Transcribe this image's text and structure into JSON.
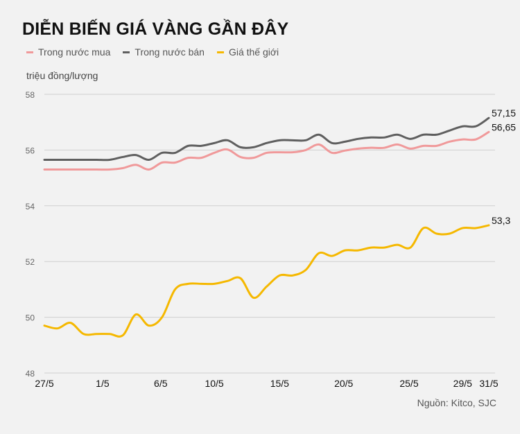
{
  "chart_data": {
    "type": "line",
    "title": "DIỄN BIẾN GIÁ VÀNG GẦN ĐÂY",
    "ylabel": "triệu đồng/lượng",
    "source": "Nguồn: Kitco, SJC",
    "ylim": [
      48,
      58
    ],
    "yticks": [
      "48",
      "50",
      "52",
      "54",
      "56",
      "58"
    ],
    "grid": true,
    "legend_position": "top-left",
    "xticks": [
      {
        "label": "27/5",
        "index": 0
      },
      {
        "label": "1/5",
        "index": 4.45
      },
      {
        "label": "6/5",
        "index": 8.9
      },
      {
        "label": "10/5",
        "index": 13
      },
      {
        "label": "15/5",
        "index": 18
      },
      {
        "label": "20/5",
        "index": 22.9
      },
      {
        "label": "25/5",
        "index": 27.9
      },
      {
        "label": "29/5",
        "index": 32
      },
      {
        "label": "31/5",
        "index": 34
      }
    ],
    "series": [
      {
        "name": "Trong nước mua",
        "color": "#f0999a",
        "end_label": "56,65",
        "values": [
          55.3,
          55.3,
          55.3,
          55.3,
          55.3,
          55.3,
          55.35,
          55.47,
          55.3,
          55.55,
          55.55,
          55.72,
          55.72,
          55.9,
          56.02,
          55.75,
          55.72,
          55.9,
          55.92,
          55.92,
          56.0,
          56.2,
          55.9,
          55.98,
          56.05,
          56.08,
          56.08,
          56.2,
          56.05,
          56.15,
          56.15,
          56.3,
          56.38,
          56.38,
          56.65
        ]
      },
      {
        "name": "Trong nước bán",
        "color": "#5f5f5f",
        "end_label": "57,15",
        "values": [
          55.65,
          55.65,
          55.65,
          55.65,
          55.65,
          55.65,
          55.75,
          55.82,
          55.65,
          55.9,
          55.9,
          56.15,
          56.15,
          56.25,
          56.35,
          56.1,
          56.1,
          56.25,
          56.35,
          56.35,
          56.35,
          56.55,
          56.25,
          56.3,
          56.4,
          56.45,
          56.45,
          56.55,
          56.4,
          56.55,
          56.55,
          56.7,
          56.85,
          56.85,
          57.15
        ]
      },
      {
        "name": "Giá thế giới",
        "color": "#f5b800",
        "end_label": "53,3",
        "values": [
          49.7,
          49.6,
          49.8,
          49.4,
          49.4,
          49.4,
          49.35,
          50.1,
          49.7,
          50.0,
          51.0,
          51.2,
          51.2,
          51.2,
          51.3,
          51.4,
          50.7,
          51.1,
          51.5,
          51.5,
          51.7,
          52.3,
          52.2,
          52.4,
          52.4,
          52.5,
          52.5,
          52.6,
          52.5,
          53.2,
          53.0,
          53.0,
          53.2,
          53.2,
          53.3
        ]
      }
    ]
  }
}
